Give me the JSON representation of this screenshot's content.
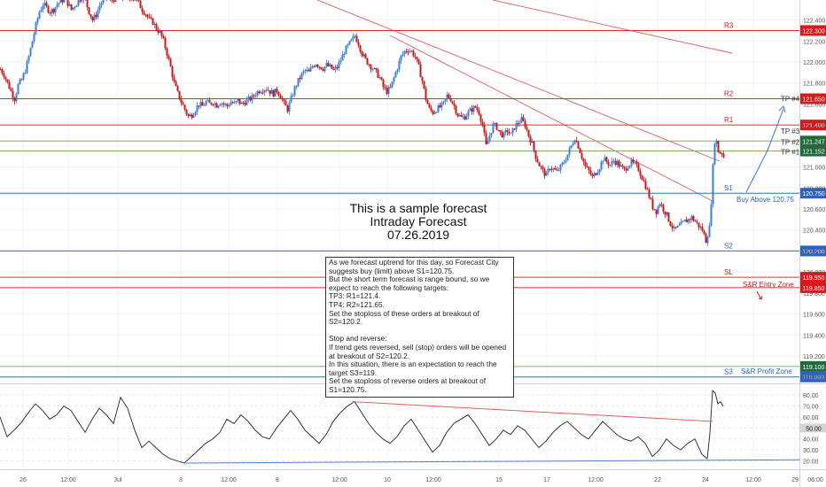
{
  "center_title": {
    "line1": "This is a sample forecast",
    "line2": "Intraday Forecast",
    "line3": "07.26.2019"
  },
  "note_paragraphs": [
    "As we forecast uptrend for this day, so Forecast City suggests buy (limit) above S1=120.75.",
    "But the short term forecast is range bound, so we expect to reach the following targets:",
    "TP3: R1=121.4.",
    "TP4: R2=121.65.",
    "Set the stoploss of these orders at breakout of S2=120.2.",
    "",
    "Stop and reverse:",
    "If trend gets reversed, sell (stop) orders will be opened at breakout of S2=120.2.",
    "In this situation, there is an expectation to reach the target S3=119.",
    "Set the stoploss of reverse orders at breakout of S1=120.75."
  ],
  "colors": {
    "up": "#3b7fd9",
    "down": "#cc1616",
    "resistance": "#e03030",
    "support": "#2b6fd6",
    "target": "#7fb069",
    "trend": "#e06060",
    "osc": "#222222",
    "axis_text": "#555555",
    "grid": "#f0f3f7"
  },
  "chart_data": [
    {
      "type": "candlestick",
      "title": "",
      "xlabel": "",
      "ylabel": "",
      "ylim": [
        118.98,
        122.55
      ],
      "y_ticks": [
        "122.400",
        "122.200",
        "122.000",
        "121.800",
        "121.600",
        "121.400",
        "121.200",
        "121.000",
        "120.800",
        "120.600",
        "120.400",
        "120.200",
        "120.000",
        "119.800",
        "119.600",
        "119.400",
        "119.200",
        "119.000"
      ],
      "x_ticks": [
        "26",
        "12:00",
        "Jul",
        "3",
        "12:00",
        "8",
        "12:00",
        "10",
        "12:00",
        "15",
        "17",
        "12:00",
        "22",
        "24",
        "12:00",
        "29",
        "06:00"
      ],
      "grid": true,
      "levels": [
        {
          "label": "R3",
          "value": 122.3,
          "tag": "122.300",
          "kind": "resistance"
        },
        {
          "label": "R2",
          "value": 121.65,
          "tag": "121.650",
          "kind": "resistance"
        },
        {
          "label": "R1",
          "value": 121.4,
          "tag": "121.400",
          "kind": "resistance"
        },
        {
          "label": "TP #2",
          "value": 121.247,
          "tag": "121.247",
          "kind": "target"
        },
        {
          "label": "TP #1",
          "value": 121.152,
          "tag": "121.152",
          "kind": "target"
        },
        {
          "label": "S1",
          "value": 120.75,
          "tag": "120.750",
          "kind": "support"
        },
        {
          "label": "S2",
          "value": 120.2,
          "tag": "120.200",
          "kind": "support"
        },
        {
          "label": "SL",
          "value": 119.95,
          "tag": "119.950",
          "kind": "resistance"
        },
        {
          "label": "",
          "value": 119.85,
          "tag": "119.850",
          "kind": "resistance"
        },
        {
          "label": "",
          "value": 119.1,
          "tag": "119.100",
          "kind": "target"
        },
        {
          "label": "S3",
          "value": 119.0,
          "tag": "119.000",
          "kind": "support"
        }
      ],
      "annotations": [
        "TP #4",
        "TP #3",
        "Buy Above 120.75",
        "S&R Entry Zone",
        "S&R Profit Zone"
      ],
      "close_path": [
        [
          0,
          121.93
        ],
        [
          4,
          121.88
        ],
        [
          8,
          121.8
        ],
        [
          12,
          121.72
        ],
        [
          16,
          121.65
        ],
        [
          20,
          121.78
        ],
        [
          24,
          121.83
        ],
        [
          28,
          121.92
        ],
        [
          32,
          122.05
        ],
        [
          36,
          122.2
        ],
        [
          40,
          122.35
        ],
        [
          44,
          122.48
        ],
        [
          48,
          122.55
        ],
        [
          52,
          122.52
        ],
        [
          56,
          122.48
        ],
        [
          60,
          122.5
        ],
        [
          64,
          122.55
        ],
        [
          68,
          122.58
        ],
        [
          72,
          122.6
        ],
        [
          76,
          122.56
        ],
        [
          80,
          122.5
        ],
        [
          84,
          122.54
        ],
        [
          88,
          122.58
        ],
        [
          92,
          122.62
        ],
        [
          96,
          122.58
        ],
        [
          100,
          122.48
        ],
        [
          104,
          122.4
        ],
        [
          108,
          122.45
        ],
        [
          112,
          122.54
        ],
        [
          116,
          122.6
        ],
        [
          120,
          122.62
        ],
        [
          124,
          122.58
        ],
        [
          128,
          122.6
        ],
        [
          132,
          122.62
        ],
        [
          136,
          122.6
        ],
        [
          140,
          122.62
        ],
        [
          144,
          122.58
        ],
        [
          148,
          122.62
        ],
        [
          152,
          122.6
        ],
        [
          156,
          122.56
        ],
        [
          160,
          122.5
        ],
        [
          164,
          122.46
        ],
        [
          168,
          122.4
        ],
        [
          172,
          122.38
        ],
        [
          176,
          122.32
        ],
        [
          180,
          122.28
        ],
        [
          184,
          122.2
        ],
        [
          188,
          122.08
        ],
        [
          192,
          121.95
        ],
        [
          196,
          121.8
        ],
        [
          200,
          121.7
        ],
        [
          204,
          121.62
        ],
        [
          208,
          121.55
        ],
        [
          212,
          121.48
        ],
        [
          216,
          121.5
        ],
        [
          220,
          121.55
        ],
        [
          224,
          121.6
        ],
        [
          228,
          121.58
        ],
        [
          232,
          121.62
        ],
        [
          236,
          121.6
        ],
        [
          240,
          121.62
        ],
        [
          244,
          121.59
        ],
        [
          248,
          121.62
        ],
        [
          252,
          121.6
        ],
        [
          256,
          121.58
        ],
        [
          260,
          121.62
        ],
        [
          264,
          121.6
        ],
        [
          268,
          121.63
        ],
        [
          272,
          121.6
        ],
        [
          276,
          121.62
        ],
        [
          280,
          121.64
        ],
        [
          284,
          121.66
        ],
        [
          288,
          121.7
        ],
        [
          292,
          121.73
        ],
        [
          296,
          121.74
        ],
        [
          300,
          121.75
        ],
        [
          304,
          121.72
        ],
        [
          308,
          121.7
        ],
        [
          312,
          121.73
        ],
        [
          316,
          121.68
        ],
        [
          320,
          121.6
        ],
        [
          324,
          121.55
        ],
        [
          328,
          121.65
        ],
        [
          332,
          121.75
        ],
        [
          336,
          121.82
        ],
        [
          340,
          121.88
        ],
        [
          344,
          121.92
        ],
        [
          348,
          121.9
        ],
        [
          352,
          121.96
        ],
        [
          356,
          121.99
        ],
        [
          360,
          121.96
        ],
        [
          364,
          121.94
        ],
        [
          368,
          121.97
        ],
        [
          372,
          121.95
        ],
        [
          376,
          121.92
        ],
        [
          380,
          121.95
        ],
        [
          384,
          122.02
        ],
        [
          388,
          122.1
        ],
        [
          392,
          122.15
        ],
        [
          396,
          122.2
        ],
        [
          400,
          122.25
        ],
        [
          404,
          122.18
        ],
        [
          408,
          122.08
        ],
        [
          412,
          122.02
        ],
        [
          416,
          121.98
        ],
        [
          420,
          121.94
        ],
        [
          424,
          121.9
        ],
        [
          428,
          121.85
        ],
        [
          432,
          121.76
        ],
        [
          436,
          121.72
        ],
        [
          440,
          121.75
        ],
        [
          444,
          121.85
        ],
        [
          448,
          121.95
        ],
        [
          452,
          122.05
        ],
        [
          456,
          122.1
        ],
        [
          460,
          122.12
        ],
        [
          464,
          122.1
        ],
        [
          468,
          122.05
        ],
        [
          472,
          121.95
        ],
        [
          476,
          121.82
        ],
        [
          480,
          121.65
        ],
        [
          484,
          121.55
        ],
        [
          488,
          121.52
        ],
        [
          492,
          121.55
        ],
        [
          496,
          121.57
        ],
        [
          500,
          121.6
        ],
        [
          504,
          121.68
        ],
        [
          508,
          121.65
        ],
        [
          512,
          121.58
        ],
        [
          516,
          121.5
        ],
        [
          520,
          121.47
        ],
        [
          524,
          121.48
        ],
        [
          528,
          121.52
        ],
        [
          532,
          121.55
        ],
        [
          536,
          121.57
        ],
        [
          540,
          121.52
        ],
        [
          544,
          121.4
        ],
        [
          548,
          121.2
        ],
        [
          552,
          121.3
        ],
        [
          556,
          121.4
        ],
        [
          560,
          121.38
        ],
        [
          564,
          121.32
        ],
        [
          568,
          121.3
        ],
        [
          572,
          121.35
        ],
        [
          576,
          121.3
        ],
        [
          580,
          121.38
        ],
        [
          584,
          121.42
        ],
        [
          588,
          121.45
        ],
        [
          592,
          121.4
        ],
        [
          596,
          121.3
        ],
        [
          600,
          121.22
        ],
        [
          604,
          121.1
        ],
        [
          608,
          121.02
        ],
        [
          612,
          120.96
        ],
        [
          616,
          120.92
        ],
        [
          620,
          121.0
        ],
        [
          624,
          120.98
        ],
        [
          628,
          120.95
        ],
        [
          632,
          121.0
        ],
        [
          636,
          121.05
        ],
        [
          640,
          121.12
        ],
        [
          644,
          121.2
        ],
        [
          648,
          121.28
        ],
        [
          652,
          121.2
        ],
        [
          656,
          121.1
        ],
        [
          660,
          121.0
        ],
        [
          664,
          120.96
        ],
        [
          668,
          120.9
        ],
        [
          672,
          120.95
        ],
        [
          676,
          121.0
        ],
        [
          680,
          121.08
        ],
        [
          684,
          121.05
        ],
        [
          688,
          121.02
        ],
        [
          692,
          121.06
        ],
        [
          696,
          121.04
        ],
        [
          700,
          121.0
        ],
        [
          704,
          120.97
        ],
        [
          708,
          121.02
        ],
        [
          712,
          121.04
        ],
        [
          716,
          121.02
        ],
        [
          720,
          120.98
        ],
        [
          724,
          120.9
        ],
        [
          728,
          120.82
        ],
        [
          732,
          120.72
        ],
        [
          736,
          120.62
        ],
        [
          740,
          120.58
        ],
        [
          744,
          120.66
        ],
        [
          748,
          120.6
        ],
        [
          752,
          120.54
        ],
        [
          756,
          120.46
        ],
        [
          760,
          120.4
        ],
        [
          764,
          120.42
        ],
        [
          768,
          120.45
        ],
        [
          772,
          120.48
        ],
        [
          776,
          120.5
        ],
        [
          780,
          120.52
        ],
        [
          784,
          120.48
        ],
        [
          788,
          120.44
        ],
        [
          792,
          120.4
        ],
        [
          796,
          120.3
        ],
        [
          800,
          120.42
        ],
        [
          803,
          120.8
        ],
        [
          805,
          121.2
        ],
        [
          807,
          121.3
        ],
        [
          809,
          121.18
        ],
        [
          811,
          121.12
        ],
        [
          813,
          121.16
        ],
        [
          815,
          121.12
        ],
        [
          817,
          121.08
        ]
      ]
    },
    {
      "type": "line",
      "title": "",
      "name": "",
      "ylim": [
        12,
        92
      ],
      "y_ticks": [
        "80.00",
        "70.00",
        "60.00",
        "50.00",
        "40.00",
        "30.00",
        "20.00"
      ],
      "marked_value": "50.00",
      "values": [
        [
          0,
          60
        ],
        [
          8,
          42
        ],
        [
          16,
          48
        ],
        [
          24,
          55
        ],
        [
          32,
          64
        ],
        [
          40,
          72
        ],
        [
          48,
          66
        ],
        [
          56,
          58
        ],
        [
          64,
          62
        ],
        [
          72,
          70
        ],
        [
          80,
          66
        ],
        [
          88,
          56
        ],
        [
          96,
          46
        ],
        [
          104,
          58
        ],
        [
          112,
          68
        ],
        [
          120,
          62
        ],
        [
          128,
          54
        ],
        [
          136,
          78
        ],
        [
          144,
          68
        ],
        [
          152,
          48
        ],
        [
          160,
          32
        ],
        [
          168,
          38
        ],
        [
          176,
          32
        ],
        [
          184,
          26
        ],
        [
          192,
          22
        ],
        [
          200,
          20
        ],
        [
          208,
          18
        ],
        [
          216,
          24
        ],
        [
          224,
          30
        ],
        [
          232,
          36
        ],
        [
          240,
          40
        ],
        [
          248,
          46
        ],
        [
          256,
          58
        ],
        [
          264,
          54
        ],
        [
          272,
          62
        ],
        [
          280,
          56
        ],
        [
          288,
          48
        ],
        [
          296,
          42
        ],
        [
          304,
          40
        ],
        [
          312,
          50
        ],
        [
          320,
          58
        ],
        [
          328,
          66
        ],
        [
          336,
          58
        ],
        [
          344,
          48
        ],
        [
          352,
          42
        ],
        [
          360,
          36
        ],
        [
          368,
          44
        ],
        [
          376,
          56
        ],
        [
          384,
          64
        ],
        [
          392,
          70
        ],
        [
          400,
          74
        ],
        [
          408,
          64
        ],
        [
          416,
          54
        ],
        [
          424,
          46
        ],
        [
          432,
          40
        ],
        [
          440,
          36
        ],
        [
          448,
          42
        ],
        [
          456,
          52
        ],
        [
          464,
          58
        ],
        [
          472,
          48
        ],
        [
          480,
          38
        ],
        [
          488,
          28
        ],
        [
          496,
          34
        ],
        [
          504,
          46
        ],
        [
          512,
          54
        ],
        [
          520,
          58
        ],
        [
          528,
          62
        ],
        [
          536,
          54
        ],
        [
          544,
          44
        ],
        [
          552,
          34
        ],
        [
          560,
          40
        ],
        [
          568,
          48
        ],
        [
          576,
          44
        ],
        [
          584,
          52
        ],
        [
          592,
          48
        ],
        [
          600,
          40
        ],
        [
          608,
          32
        ],
        [
          616,
          38
        ],
        [
          624,
          46
        ],
        [
          632,
          52
        ],
        [
          640,
          56
        ],
        [
          648,
          50
        ],
        [
          656,
          44
        ],
        [
          664,
          40
        ],
        [
          672,
          48
        ],
        [
          680,
          56
        ],
        [
          688,
          50
        ],
        [
          696,
          44
        ],
        [
          704,
          40
        ],
        [
          712,
          38
        ],
        [
          720,
          42
        ],
        [
          728,
          36
        ],
        [
          736,
          24
        ],
        [
          744,
          30
        ],
        [
          752,
          40
        ],
        [
          760,
          34
        ],
        [
          768,
          30
        ],
        [
          776,
          36
        ],
        [
          784,
          40
        ],
        [
          792,
          26
        ],
        [
          798,
          22
        ],
        [
          801,
          45
        ],
        [
          804,
          84
        ],
        [
          807,
          82
        ],
        [
          810,
          72
        ],
        [
          813,
          74
        ],
        [
          816,
          70
        ]
      ]
    }
  ]
}
